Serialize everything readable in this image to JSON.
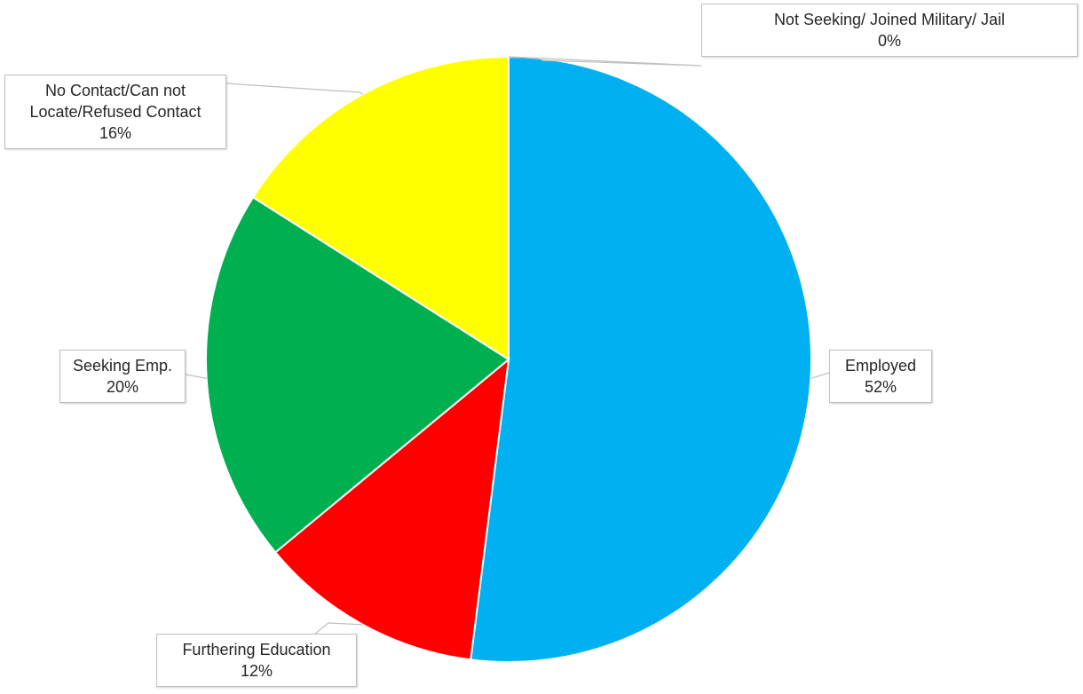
{
  "chart_data": {
    "type": "pie",
    "slices": [
      {
        "label_lines": [
          "Employed"
        ],
        "percent_text": "52%",
        "value": 52,
        "color": "#00b0f0"
      },
      {
        "label_lines": [
          "Furthering Education"
        ],
        "percent_text": "12%",
        "value": 12,
        "color": "#ff0000"
      },
      {
        "label_lines": [
          "Seeking Emp."
        ],
        "percent_text": "20%",
        "value": 20,
        "color": "#00b050"
      },
      {
        "label_lines": [
          "No Contact/Can not",
          "Locate/Refused Contact"
        ],
        "percent_text": "16%",
        "value": 16,
        "color": "#ffff00"
      },
      {
        "label_lines": [
          "Not Seeking/ Joined Military/ Jail"
        ],
        "percent_text": "0%",
        "value": 0,
        "color": "#7030a0"
      }
    ],
    "start_angle": "12 o'clock",
    "direction": "clockwise",
    "legend": "none",
    "data_labels": "callouts"
  }
}
